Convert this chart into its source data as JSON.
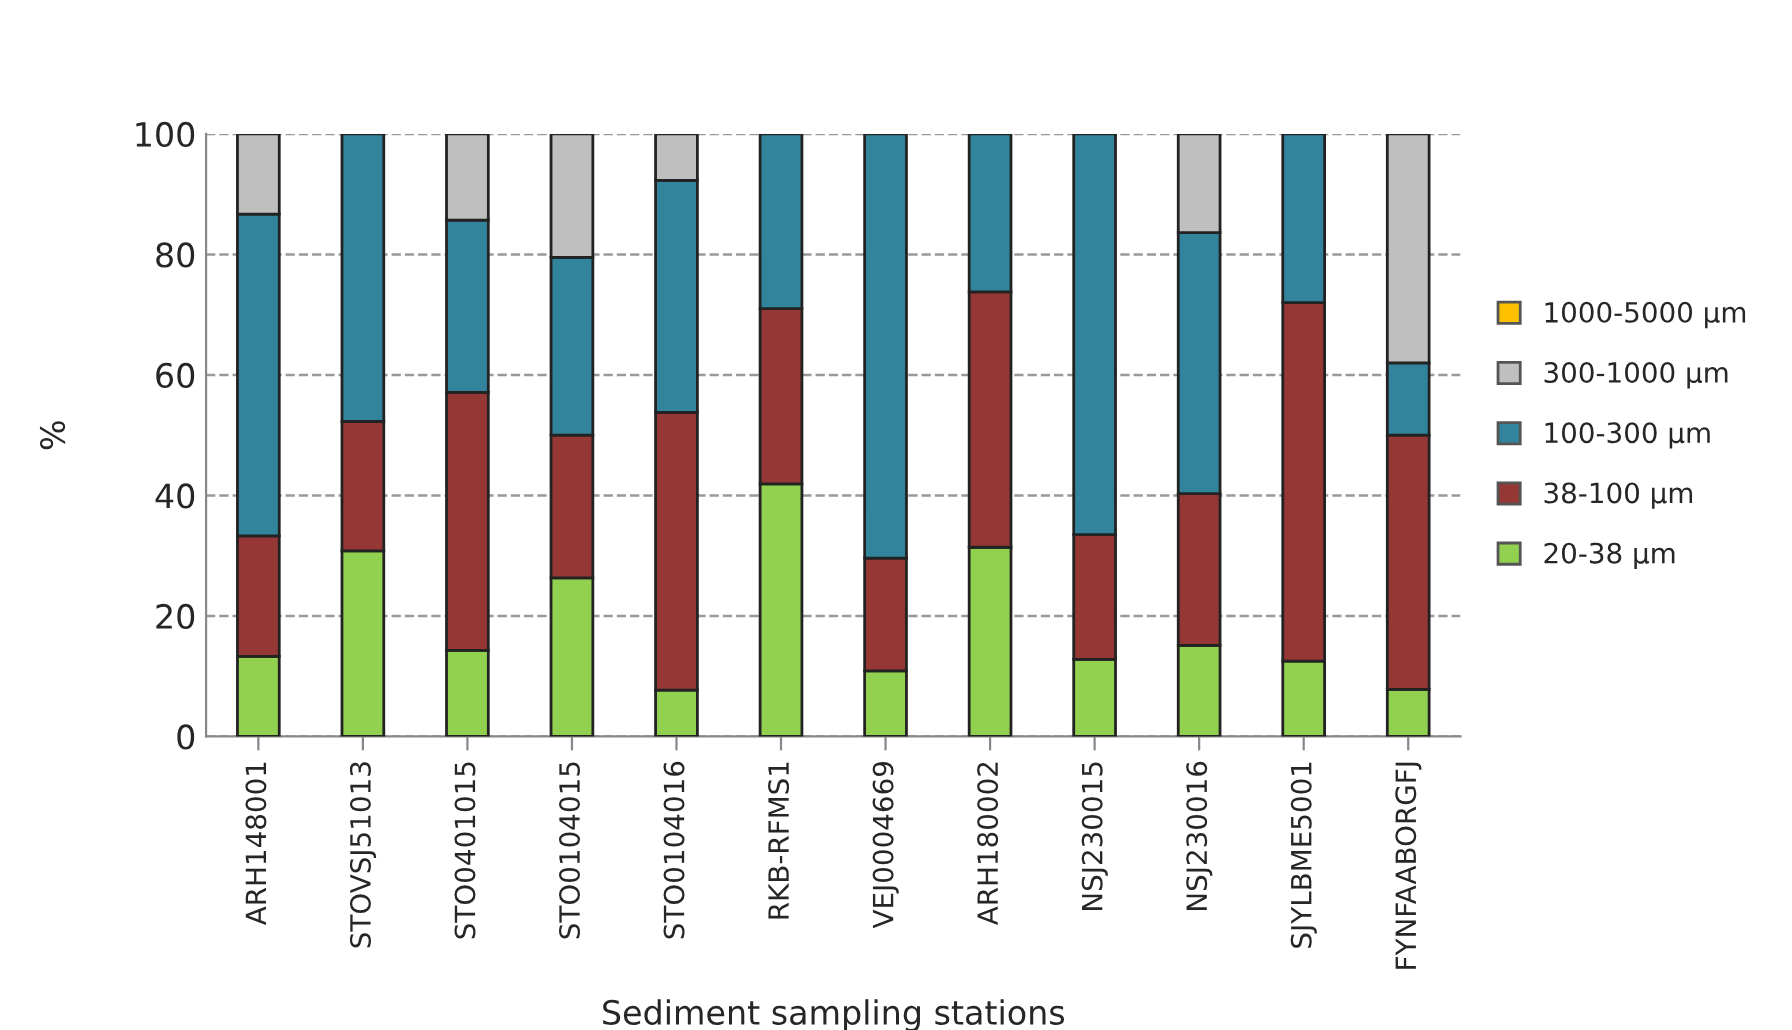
{
  "chart_data": {
    "type": "bar",
    "stacked": true,
    "xlabel": "Sediment sampling stations",
    "ylabel": "%",
    "categories": [
      "ARH148001",
      "STOVSJ51013",
      "STO0401015",
      "STO0104015",
      "STO0104016",
      "RKB-RFMS1",
      "VEJ0004669",
      "ARH180002",
      "NSJ230015",
      "NSJ230016",
      "SJYLBME5001",
      "FYNFAABORGFJ"
    ],
    "series": [
      {
        "name": "20-38 µm",
        "color": "#92d050",
        "values": [
          13.3,
          30.8,
          14.3,
          26.3,
          7.7,
          41.9,
          10.9,
          31.4,
          12.8,
          15.1,
          12.5,
          7.8
        ]
      },
      {
        "name": "38-100 µm",
        "color": "#953735",
        "values": [
          20.0,
          21.5,
          42.8,
          23.7,
          46.1,
          29.1,
          18.7,
          42.4,
          20.7,
          25.2,
          59.5,
          42.2
        ]
      },
      {
        "name": "100-300 µm",
        "color": "#31849b",
        "values": [
          53.4,
          47.7,
          28.6,
          29.5,
          38.5,
          29.0,
          70.4,
          26.2,
          66.5,
          43.3,
          28.0,
          12.0
        ]
      },
      {
        "name": "300-1000 µm",
        "color": "#bfbfbf",
        "values": [
          13.3,
          0,
          14.3,
          20.5,
          7.7,
          0,
          0,
          0,
          0,
          16.4,
          0,
          38.0
        ]
      },
      {
        "name": "1000-5000 µm",
        "color": "#ffc000",
        "values": [
          0,
          0,
          0,
          0,
          0,
          0,
          0,
          0,
          0,
          0,
          0,
          0
        ]
      }
    ],
    "ylim": [
      0,
      100
    ],
    "yticks": [
      0,
      20,
      40,
      60,
      80,
      100
    ],
    "grid": "y",
    "legend": "right"
  }
}
